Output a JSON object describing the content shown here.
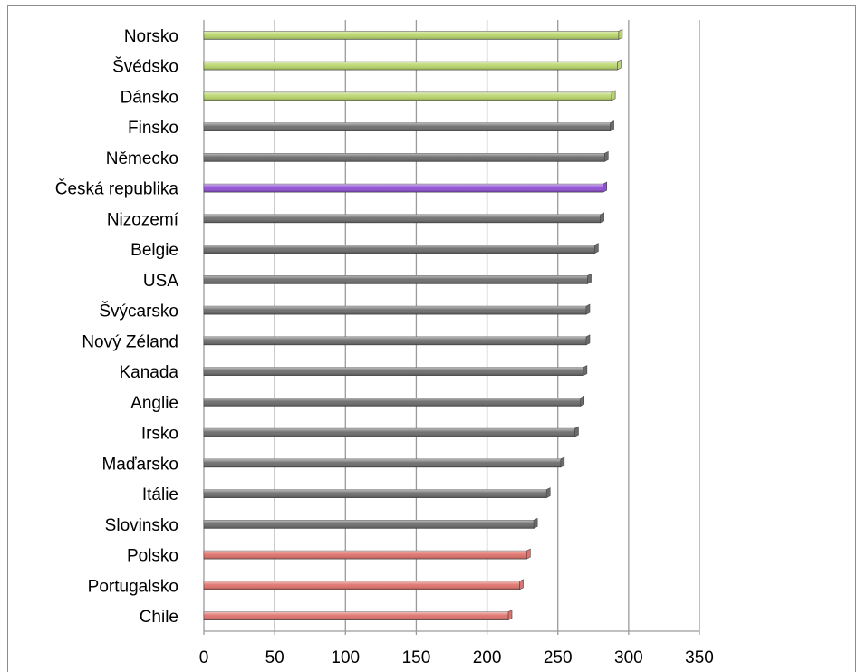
{
  "chart_data": {
    "type": "bar",
    "orientation": "horizontal",
    "title": "",
    "xlabel": "",
    "ylabel": "",
    "xlim": [
      0,
      350
    ],
    "x_ticks": [
      0,
      50,
      100,
      150,
      200,
      250,
      300,
      350
    ],
    "grid": true,
    "legend": "none",
    "categories": [
      "Norsko",
      "Švédsko",
      "Dánsko",
      "Finsko",
      "Německo",
      "Česká republika",
      "Nizozemí",
      "Belgie",
      "USA",
      "Švýcarsko",
      "Nový Zéland",
      "Kanada",
      "Anglie",
      "Irsko",
      "Maďarsko",
      "Itálie",
      "Slovinsko",
      "Polsko",
      "Portugalsko",
      "Chile"
    ],
    "values": [
      293,
      292,
      288,
      287,
      283,
      282,
      280,
      276,
      271,
      270,
      270,
      268,
      266,
      262,
      252,
      242,
      233,
      228,
      223,
      215
    ],
    "bar_colors": [
      "#b9d66a",
      "#b9d66a",
      "#b9d66a",
      "#6b6b6b",
      "#6b6b6b",
      "#8f4fd6",
      "#6b6b6b",
      "#6b6b6b",
      "#6b6b6b",
      "#6b6b6b",
      "#6b6b6b",
      "#6b6b6b",
      "#6b6b6b",
      "#6b6b6b",
      "#6b6b6b",
      "#6b6b6b",
      "#6b6b6b",
      "#e0716b",
      "#e0716b",
      "#e0716b"
    ]
  }
}
